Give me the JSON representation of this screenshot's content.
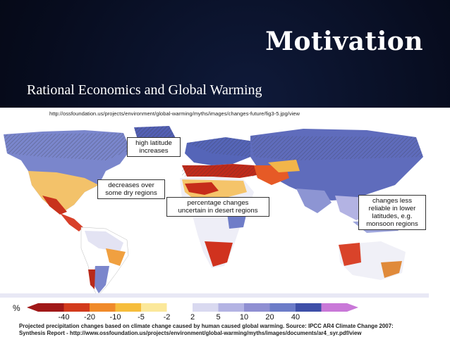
{
  "slide": {
    "title": "Motivation",
    "subtitle": "Rational Economics and Global Warming"
  },
  "figure": {
    "source_url": "http://ossfoundation.us/projects/environment/global-warming/myths/images/changes-future/fig3-5.jpg/view",
    "callouts": [
      {
        "id": "high-latitude",
        "lines": [
          "high latitude",
          "increases"
        ]
      },
      {
        "id": "dry-regions",
        "lines": [
          "decreases over",
          "some dry regions"
        ]
      },
      {
        "id": "desert",
        "lines": [
          "percentage changes",
          "uncertain in desert regions"
        ]
      },
      {
        "id": "monsoon",
        "lines": [
          "changes less",
          "reliable in lower",
          "latitudes, e.g.",
          "monsoon regions"
        ]
      }
    ],
    "legend": {
      "unit": "%",
      "labels": [
        "-40",
        "-20",
        "-10",
        "-5",
        "-2",
        "2",
        "5",
        "10",
        "20",
        "40"
      ],
      "colors": [
        "#a01818",
        "#d23a1c",
        "#f08a2a",
        "#f6bd3c",
        "#fbe89a",
        "#ffffff",
        "#d9d9f0",
        "#b3b3e3",
        "#8f8fd2",
        "#6c7cc8",
        "#3e4fa8",
        "#c978d8"
      ]
    },
    "caption": {
      "line1": "Projected precipitation changes based on climate change caused by human caused global warming. Source: IPCC AR4 Climate Change 2007:",
      "line2": "Synthesis Report - http://www.ossfoundation.us/projects/environment/global-warming/myths/images/documents/ar4_syr.pdf/view"
    }
  }
}
